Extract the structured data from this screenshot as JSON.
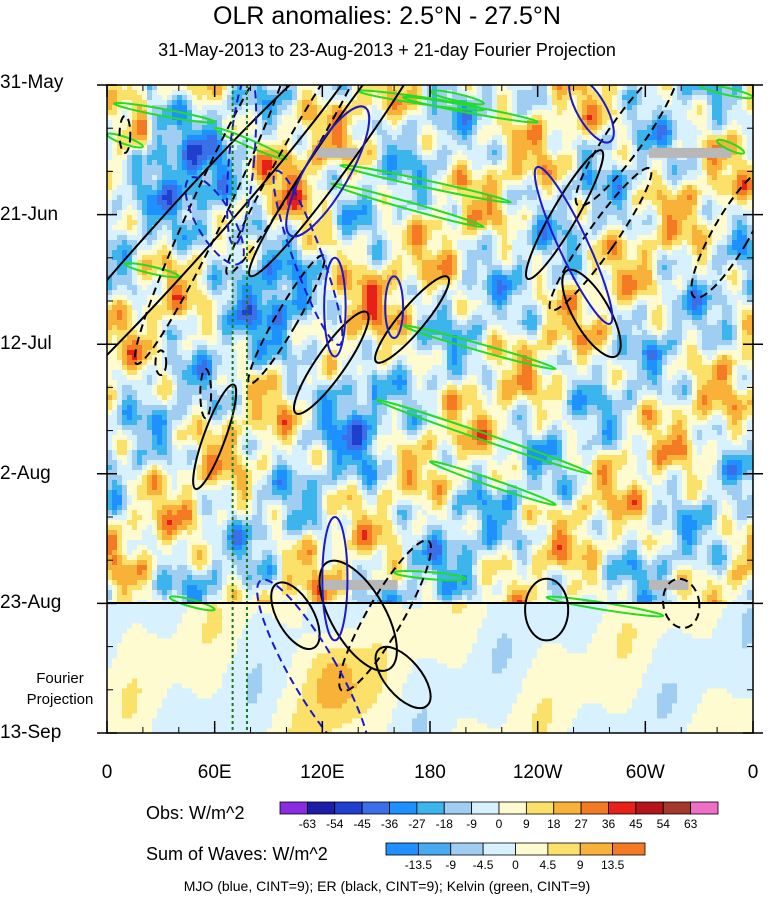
{
  "chart_data": {
    "type": "heatmap",
    "title": "OLR anomalies: 2.5°N - 27.5°N",
    "subtitle": "31-May-2013 to 23-Aug-2013 + 21-day Fourier Projection",
    "x_tick_labels": [
      "0",
      "60E",
      "120E",
      "180",
      "120W",
      "60W",
      "0"
    ],
    "x_tick_values_deg_east": [
      0,
      60,
      120,
      180,
      240,
      300,
      360
    ],
    "y_tick_labels": [
      "31-May",
      "21-Jun",
      "12-Jul",
      "2-Aug",
      "23-Aug",
      "13-Sep"
    ],
    "y_tick_values_day": [
      0,
      21,
      42,
      63,
      84,
      105
    ],
    "y_range_days": [
      0,
      105
    ],
    "observation_end_day": 84,
    "fourier_label": [
      "Fourier",
      "Projection"
    ],
    "obs_colorbar": {
      "label": "Obs: W/m^2",
      "ticks": [
        "-63",
        "-54",
        "-45",
        "-36",
        "-27",
        "-18",
        "-9",
        "0",
        "9",
        "18",
        "27",
        "36",
        "45",
        "54",
        "63"
      ],
      "colors": [
        "#8b2be2",
        "#1c1ca8",
        "#1f3fcf",
        "#3a6fe8",
        "#1e90ff",
        "#3cb4ec",
        "#a0cdf2",
        "#d8f1ff",
        "#fffbd0",
        "#fbe16a",
        "#f8b23a",
        "#f47b24",
        "#e8201a",
        "#b4141a",
        "#a5382c",
        "#ef6ec6"
      ]
    },
    "sum_colorbar": {
      "label": "Sum of Waves: W/m^2",
      "ticks": [
        "-13.5",
        "-9",
        "-4.5",
        "0",
        "4.5",
        "9",
        "13.5"
      ],
      "colors": [
        "#1e90ff",
        "#48aaf0",
        "#a0cdf2",
        "#d8f1ff",
        "#fffbd0",
        "#fbe16a",
        "#f8b23a",
        "#f47b24"
      ]
    },
    "wave_legend": "MJO (blue, CINT=9); ER (black, CINT=9); Kelvin (green, CINT=9)",
    "series_colors": {
      "mjo": "#1a1acc",
      "er": "#000000",
      "kelvin": "#22dd22",
      "vertical_marker": "#1a7a1a",
      "missing": "#b8b8b8"
    },
    "vertical_markers_deg_east": [
      70,
      78
    ],
    "missing_data_bars": [
      {
        "lon_start": 117,
        "lon_end": 140,
        "day": 11
      },
      {
        "lon_start": 302,
        "lon_end": 348,
        "day": 11
      },
      {
        "lon_start": 118,
        "lon_end": 162,
        "day": 81
      },
      {
        "lon_start": 302,
        "lon_end": 324,
        "day": 81
      }
    ],
    "mjo_contours": [
      {
        "lon": 75,
        "day": 12,
        "rx": 7,
        "ry": 14,
        "rot": 5,
        "dashed": true
      },
      {
        "lon": 60,
        "day": 22,
        "rx": 10,
        "ry": 8,
        "rot": -30,
        "dashed": true
      },
      {
        "lon": 123,
        "day": 14,
        "rx": 12,
        "ry": 12,
        "rot": 30,
        "dashed": false
      },
      {
        "lon": 112,
        "day": 28,
        "rx": 8,
        "ry": 15,
        "rot": -20,
        "dashed": true
      },
      {
        "lon": 127,
        "day": 36,
        "rx": 6,
        "ry": 8,
        "rot": 0,
        "dashed": false
      },
      {
        "lon": 160,
        "day": 36,
        "rx": 5,
        "ry": 5,
        "rot": 0,
        "dashed": false
      },
      {
        "lon": 260,
        "day": 26,
        "rx": 8,
        "ry": 14,
        "rot": -25,
        "dashed": false
      },
      {
        "lon": 270,
        "day": 4,
        "rx": 8,
        "ry": 6,
        "rot": -30,
        "dashed": false
      },
      {
        "lon": 127,
        "day": 80,
        "rx": 7,
        "ry": 10,
        "rot": 0,
        "dashed": false
      },
      {
        "lon": 115,
        "day": 95,
        "rx": 13,
        "ry": 17,
        "rot": -30,
        "dashed": true
      }
    ],
    "er_contours": [
      {
        "lon": 40,
        "day": 25,
        "rx": 15,
        "ry": 48,
        "rot": 42,
        "dashed": false
      },
      {
        "lon": 60,
        "day": 18,
        "rx": 10,
        "ry": 30,
        "rot": 25,
        "dashed": true
      },
      {
        "lon": 110,
        "day": 9,
        "rx": 8,
        "ry": 25,
        "rot": 30,
        "dashed": true
      },
      {
        "lon": 135,
        "day": 8,
        "rx": 10,
        "ry": 28,
        "rot": 35,
        "dashed": false
      },
      {
        "lon": 100,
        "day": 38,
        "rx": 6,
        "ry": 12,
        "rot": 30,
        "dashed": true
      },
      {
        "lon": 125,
        "day": 45,
        "rx": 8,
        "ry": 10,
        "rot": 35,
        "dashed": false
      },
      {
        "lon": 170,
        "day": 38,
        "rx": 7,
        "ry": 9,
        "rot": 40,
        "dashed": false
      },
      {
        "lon": 60,
        "day": 57,
        "rx": 6,
        "ry": 9,
        "rot": 20,
        "dashed": false
      },
      {
        "lon": 55,
        "day": 50,
        "rx": 3,
        "ry": 4,
        "rot": 0,
        "dashed": true
      },
      {
        "lon": 255,
        "day": 21,
        "rx": 7,
        "ry": 12,
        "rot": 30,
        "dashed": false
      },
      {
        "lon": 275,
        "day": 25,
        "rx": 8,
        "ry": 14,
        "rot": 35,
        "dashed": true
      },
      {
        "lon": 270,
        "day": 37,
        "rx": 10,
        "ry": 8,
        "rot": -30,
        "dashed": false
      },
      {
        "lon": 290,
        "day": 8,
        "rx": 10,
        "ry": 14,
        "rot": 35,
        "dashed": true
      },
      {
        "lon": 348,
        "day": 24,
        "rx": 10,
        "ry": 12,
        "rot": 30,
        "dashed": true
      },
      {
        "lon": 140,
        "day": 86,
        "rx": 15,
        "ry": 10,
        "rot": -30,
        "dashed": false
      },
      {
        "lon": 155,
        "day": 86,
        "rx": 10,
        "ry": 14,
        "rot": 30,
        "dashed": true
      },
      {
        "lon": 165,
        "day": 96,
        "rx": 10,
        "ry": 6,
        "rot": -40,
        "dashed": false
      },
      {
        "lon": 105,
        "day": 86,
        "rx": 10,
        "ry": 6,
        "rot": -30,
        "dashed": false
      },
      {
        "lon": 245,
        "day": 85,
        "rx": 12,
        "ry": 5,
        "rot": 0,
        "dashed": false
      },
      {
        "lon": 320,
        "day": 84,
        "rx": 10,
        "ry": 4,
        "rot": -10,
        "dashed": true
      },
      {
        "lon": 30,
        "day": 45,
        "rx": 3,
        "ry": 2,
        "rot": 0,
        "dashed": true
      },
      {
        "lon": 10,
        "day": 8,
        "rx": 3,
        "ry": 3,
        "rot": 0,
        "dashed": true
      }
    ],
    "kelvin_contours": [
      {
        "lon_start": 0,
        "day_start": 8,
        "lon_end": 20,
        "day_end": 10
      },
      {
        "lon_start": 4,
        "day_start": 3,
        "lon_end": 60,
        "day_end": 6
      },
      {
        "lon_start": 60,
        "day_start": 7,
        "lon_end": 100,
        "day_end": 12
      },
      {
        "lon_start": 10,
        "day_start": 29,
        "lon_end": 40,
        "day_end": 31
      },
      {
        "lon_start": 165,
        "day_start": 2,
        "lon_end": 240,
        "day_end": 6
      },
      {
        "lon_start": 140,
        "day_start": 1,
        "lon_end": 210,
        "day_end": 4
      },
      {
        "lon_start": 130,
        "day_start": 13,
        "lon_end": 225,
        "day_end": 19
      },
      {
        "lon_start": 125,
        "day_start": 16,
        "lon_end": 210,
        "day_end": 23
      },
      {
        "lon_start": 330,
        "day_start": 0,
        "lon_end": 360,
        "day_end": 2
      },
      {
        "lon_start": 165,
        "day_start": 39,
        "lon_end": 250,
        "day_end": 46
      },
      {
        "lon_start": 150,
        "day_start": 51,
        "lon_end": 270,
        "day_end": 63
      },
      {
        "lon_start": 180,
        "day_start": 61,
        "lon_end": 250,
        "day_end": 68
      },
      {
        "lon_start": 160,
        "day_start": 79,
        "lon_end": 200,
        "day_end": 80
      },
      {
        "lon_start": 245,
        "day_start": 83,
        "lon_end": 310,
        "day_end": 86
      },
      {
        "lon_start": 35,
        "day_start": 83,
        "lon_end": 60,
        "day_end": 85
      },
      {
        "lon_start": 180,
        "day_start": 1,
        "lon_end": 210,
        "day_end": 3
      },
      {
        "lon_start": 340,
        "day_start": 9,
        "lon_end": 355,
        "day_end": 11
      }
    ]
  }
}
